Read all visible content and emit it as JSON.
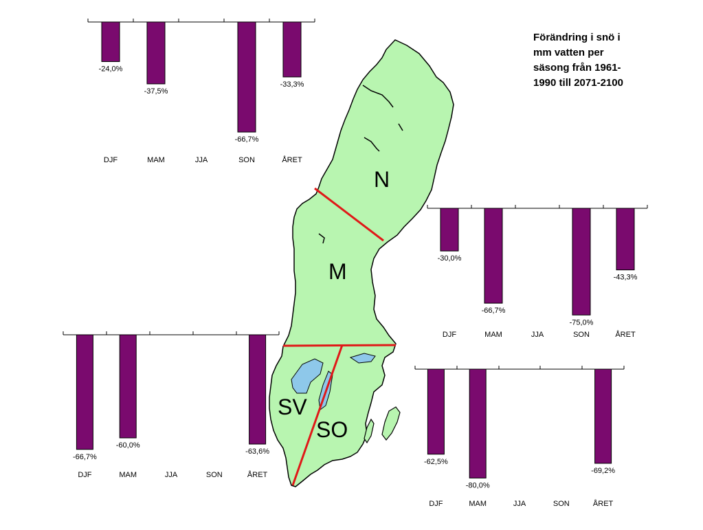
{
  "title": "Förändring i snö i\nmm vatten per\nsäsong från 1961-\n1990 till 2071-2100",
  "bar_color": "#7a0a6e",
  "map_fill": "#b8f5b0",
  "divider_color": "#e01818",
  "regions": {
    "N": "N",
    "M": "M",
    "SV": "SV",
    "SO": "SO"
  },
  "chart_data": [
    {
      "type": "bar",
      "region": "N",
      "categories": [
        "DJF",
        "MAM",
        "JJA",
        "SON",
        "ÅRET"
      ],
      "values": [
        -24.0,
        -37.5,
        null,
        -66.7,
        -33.3
      ],
      "labels": [
        "-24,0%",
        "-37,5%",
        "",
        "-66,7%",
        "-33,3%"
      ],
      "ylim": [
        -70,
        0
      ]
    },
    {
      "type": "bar",
      "region": "M",
      "categories": [
        "DJF",
        "MAM",
        "JJA",
        "SON",
        "ÅRET"
      ],
      "values": [
        -30.0,
        -66.7,
        null,
        -75.0,
        -43.3
      ],
      "labels": [
        "-30,0%",
        "-66,7%",
        "",
        "-75,0%",
        "-43,3%"
      ],
      "ylim": [
        -80,
        0
      ]
    },
    {
      "type": "bar",
      "region": "SV",
      "categories": [
        "DJF",
        "MAM",
        "JJA",
        "SON",
        "ÅRET"
      ],
      "values": [
        -66.7,
        -60.0,
        null,
        null,
        -63.6
      ],
      "labels": [
        "-66,7%",
        "-60,0%",
        "",
        "",
        "-63,6%"
      ],
      "ylim": [
        -70,
        0
      ]
    },
    {
      "type": "bar",
      "region": "SO",
      "categories": [
        "DJF",
        "MAM",
        "JJA",
        "SON",
        "ÅRET"
      ],
      "values": [
        -62.5,
        -80.0,
        null,
        null,
        -69.2
      ],
      "labels": [
        "-62,5%",
        "-80,0%",
        "",
        "",
        "-69,2%"
      ],
      "ylim": [
        -80,
        0
      ]
    }
  ]
}
